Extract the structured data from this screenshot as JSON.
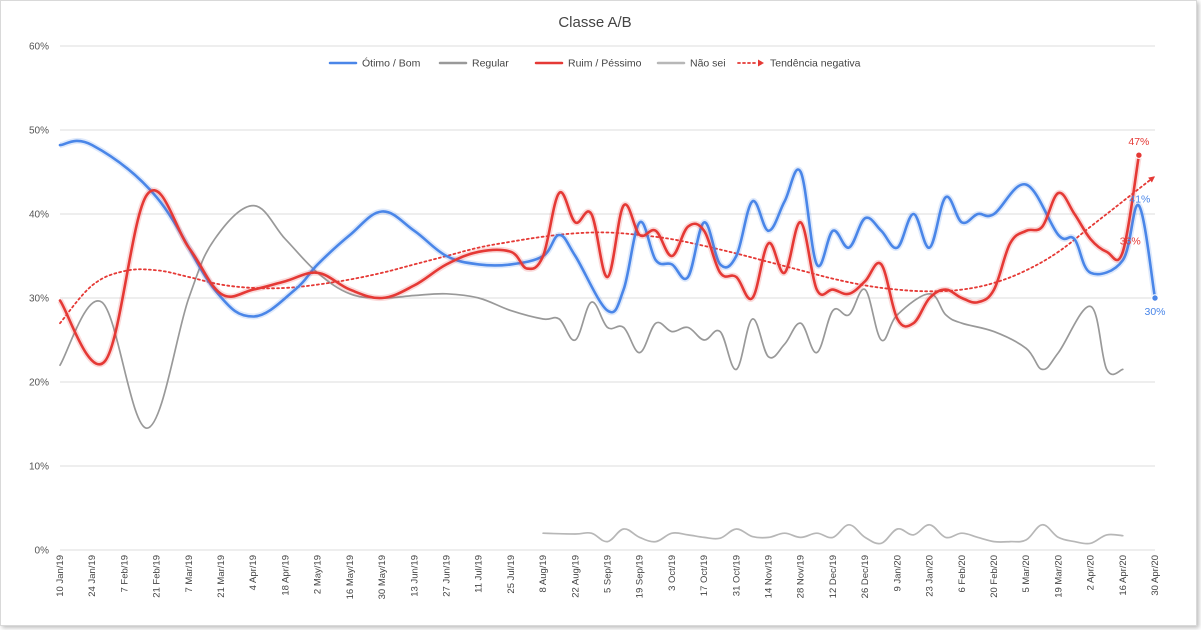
{
  "chart_data": {
    "type": "line",
    "title": "Classe A/B",
    "ylim": [
      0,
      60
    ],
    "y_ticks": [
      0,
      10,
      20,
      30,
      40,
      50,
      60
    ],
    "y_tick_labels": [
      "0%",
      "10%",
      "20%",
      "30%",
      "40%",
      "50%",
      "60%"
    ],
    "grid": true,
    "legend_position": "top",
    "x_tick_labels": [
      "10 Jan/19",
      "24 Jan/19",
      "7 Feb/19",
      "21 Feb/19",
      "7 Mar/19",
      "21 Mar/19",
      "4 Apr/19",
      "18 Apr/19",
      "2 May/19",
      "16 May/19",
      "30 May/19",
      "13 Jun/19",
      "27 Jun/19",
      "11 Jul/19",
      "25 Jul/19",
      "8 Aug/19",
      "22 Aug/19",
      "5 Sep/19",
      "19 Sep/19",
      "3 Oct/19",
      "17 Oct/19",
      "31 Oct/19",
      "14 Nov/19",
      "28 Nov/19",
      "12 Dec/19",
      "26 Dec/19",
      "9 Jan/20",
      "23 Jan/20",
      "6 Feb/20",
      "20 Feb/20",
      "5 Mar/20",
      "19 Mar/20",
      "2 Apr/20",
      "16 Apr/20",
      "30 Apr/20"
    ],
    "series": [
      {
        "name": "Ótimo / Bom",
        "color": "#4a86e8",
        "points": [
          [
            0,
            48.2
          ],
          [
            1,
            48.2
          ],
          [
            3,
            42
          ],
          [
            4.8,
            31
          ],
          [
            6,
            27.8
          ],
          [
            7.3,
            31
          ],
          [
            8,
            34
          ],
          [
            9,
            37.5
          ],
          [
            10,
            40.3
          ],
          [
            11,
            38
          ],
          [
            12,
            35
          ],
          [
            13,
            34
          ],
          [
            14,
            34
          ],
          [
            15,
            35
          ],
          [
            15.5,
            37.5
          ],
          [
            16,
            35
          ],
          [
            17,
            28.5
          ],
          [
            17.5,
            31
          ],
          [
            18,
            39
          ],
          [
            18.5,
            34.5
          ],
          [
            19,
            34
          ],
          [
            19.5,
            32.5
          ],
          [
            20,
            39
          ],
          [
            20.5,
            34
          ],
          [
            21,
            35
          ],
          [
            21.5,
            41.5
          ],
          [
            22,
            38
          ],
          [
            22.5,
            41.5
          ],
          [
            23,
            45
          ],
          [
            23.5,
            34
          ],
          [
            24,
            38
          ],
          [
            24.5,
            36
          ],
          [
            25,
            39.5
          ],
          [
            25.5,
            38
          ],
          [
            26,
            36
          ],
          [
            26.5,
            40
          ],
          [
            27,
            36
          ],
          [
            27.5,
            42
          ],
          [
            28,
            39
          ],
          [
            28.5,
            40
          ],
          [
            29,
            40
          ],
          [
            30,
            43.5
          ],
          [
            31,
            37.5
          ],
          [
            31.5,
            37
          ],
          [
            32,
            33
          ],
          [
            33,
            34.5
          ],
          [
            33.5,
            41
          ],
          [
            34,
            30
          ]
        ],
        "end_label": "30%",
        "annotations": [
          {
            "x": 33.5,
            "y": 41,
            "text": "41%"
          }
        ]
      },
      {
        "name": "Regular",
        "color": "#999999",
        "points": [
          [
            0,
            22
          ],
          [
            1.3,
            29.5
          ],
          [
            2.7,
            14.5
          ],
          [
            4,
            30
          ],
          [
            4.8,
            37
          ],
          [
            6,
            41
          ],
          [
            7,
            37
          ],
          [
            8,
            33
          ],
          [
            9,
            30.5
          ],
          [
            10,
            30
          ],
          [
            11,
            30.3
          ],
          [
            12,
            30.5
          ],
          [
            13,
            30
          ],
          [
            14,
            28.5
          ],
          [
            15,
            27.5
          ],
          [
            15.5,
            27.5
          ],
          [
            16,
            25
          ],
          [
            16.5,
            29.5
          ],
          [
            17,
            26.5
          ],
          [
            17.5,
            26.5
          ],
          [
            18,
            23.5
          ],
          [
            18.5,
            27
          ],
          [
            19,
            26
          ],
          [
            19.5,
            26.5
          ],
          [
            20,
            25
          ],
          [
            20.5,
            26
          ],
          [
            21,
            21.5
          ],
          [
            21.5,
            27.5
          ],
          [
            22,
            23
          ],
          [
            22.5,
            24.5
          ],
          [
            23,
            27
          ],
          [
            23.5,
            23.5
          ],
          [
            24,
            28.5
          ],
          [
            24.5,
            28
          ],
          [
            25,
            31
          ],
          [
            25.5,
            25
          ],
          [
            26,
            28
          ],
          [
            27,
            30.5
          ],
          [
            27.5,
            28
          ],
          [
            28,
            27
          ],
          [
            29,
            26
          ],
          [
            30,
            24
          ],
          [
            30.5,
            21.5
          ],
          [
            31,
            23.5
          ],
          [
            32,
            29
          ],
          [
            32.5,
            21.5
          ],
          [
            33,
            21.5
          ]
        ]
      },
      {
        "name": "Ruim / Péssimo",
        "color": "#e53935",
        "points": [
          [
            0,
            29.7
          ],
          [
            1.4,
            22.5
          ],
          [
            2.7,
            42.3
          ],
          [
            4,
            36
          ],
          [
            5,
            30.5
          ],
          [
            6,
            31
          ],
          [
            7,
            32
          ],
          [
            8,
            33
          ],
          [
            9,
            31
          ],
          [
            10,
            30
          ],
          [
            11,
            31.5
          ],
          [
            12,
            34
          ],
          [
            13,
            35.5
          ],
          [
            14,
            35.5
          ],
          [
            14.5,
            33.5
          ],
          [
            15,
            35
          ],
          [
            15.5,
            42.5
          ],
          [
            16,
            39
          ],
          [
            16.5,
            40
          ],
          [
            17,
            32.5
          ],
          [
            17.5,
            41
          ],
          [
            18,
            37.5
          ],
          [
            18.5,
            38
          ],
          [
            19,
            35
          ],
          [
            19.5,
            38.5
          ],
          [
            20,
            38
          ],
          [
            20.5,
            33
          ],
          [
            21,
            32.5
          ],
          [
            21.5,
            30
          ],
          [
            22,
            36.5
          ],
          [
            22.5,
            33
          ],
          [
            23,
            39
          ],
          [
            23.5,
            31
          ],
          [
            24,
            31
          ],
          [
            24.5,
            30.5
          ],
          [
            25,
            32
          ],
          [
            25.5,
            34
          ],
          [
            26,
            27.5
          ],
          [
            26.5,
            27
          ],
          [
            27,
            30
          ],
          [
            27.5,
            31
          ],
          [
            28,
            30
          ],
          [
            28.5,
            29.5
          ],
          [
            29,
            31
          ],
          [
            29.5,
            36.5
          ],
          [
            30,
            38
          ],
          [
            30.5,
            38.5
          ],
          [
            31,
            42.5
          ],
          [
            31.5,
            40
          ],
          [
            32,
            37
          ],
          [
            32.5,
            35.5
          ],
          [
            33,
            35.5
          ],
          [
            33.5,
            47
          ]
        ],
        "end_label": "47%",
        "annotations": [
          {
            "x": 33.2,
            "y": 36,
            "text": "36%"
          }
        ]
      },
      {
        "name": "Não sei",
        "color": "#b7b7b7",
        "points": [
          [
            15,
            2
          ],
          [
            16,
            1.9
          ],
          [
            16.5,
            2.0
          ],
          [
            17,
            1.0
          ],
          [
            17.5,
            2.5
          ],
          [
            18,
            1.5
          ],
          [
            18.5,
            1.0
          ],
          [
            19,
            2.0
          ],
          [
            19.5,
            1.8
          ],
          [
            20,
            1.5
          ],
          [
            20.5,
            1.4
          ],
          [
            21,
            2.5
          ],
          [
            21.5,
            1.6
          ],
          [
            22,
            1.5
          ],
          [
            22.5,
            2.0
          ],
          [
            23,
            1.5
          ],
          [
            23.5,
            2.0
          ],
          [
            24,
            1.5
          ],
          [
            24.5,
            3.0
          ],
          [
            25,
            1.5
          ],
          [
            25.5,
            0.8
          ],
          [
            26,
            2.5
          ],
          [
            26.5,
            1.8
          ],
          [
            27,
            3.0
          ],
          [
            27.5,
            1.5
          ],
          [
            28,
            2.0
          ],
          [
            28.5,
            1.5
          ],
          [
            29,
            1.0
          ],
          [
            29.5,
            1.0
          ],
          [
            30,
            1.2
          ],
          [
            30.5,
            3.0
          ],
          [
            31,
            1.5
          ],
          [
            31.5,
            1.0
          ],
          [
            32,
            0.8
          ],
          [
            32.5,
            1.8
          ],
          [
            33,
            1.7
          ]
        ]
      },
      {
        "name": "Tendência negativa",
        "color": "#e53935",
        "style": "dotted",
        "points": [
          [
            0,
            27
          ],
          [
            1,
            31.5
          ],
          [
            2,
            33.2
          ],
          [
            3,
            33.3
          ],
          [
            4,
            32.5
          ],
          [
            5,
            31.6
          ],
          [
            6,
            31.2
          ],
          [
            7,
            31.2
          ],
          [
            8,
            31.6
          ],
          [
            9,
            32.2
          ],
          [
            10,
            33
          ],
          [
            11,
            34
          ],
          [
            12,
            35
          ],
          [
            13,
            36
          ],
          [
            14,
            36.7
          ],
          [
            15,
            37.3
          ],
          [
            16,
            37.7
          ],
          [
            17,
            37.8
          ],
          [
            18,
            37.5
          ],
          [
            19,
            37
          ],
          [
            20,
            36.2
          ],
          [
            21,
            35.3
          ],
          [
            22,
            34.3
          ],
          [
            23,
            33.3
          ],
          [
            24,
            32.3
          ],
          [
            25,
            31.5
          ],
          [
            26,
            31
          ],
          [
            27,
            30.8
          ],
          [
            28,
            31
          ],
          [
            29,
            31.8
          ],
          [
            30,
            33.3
          ],
          [
            31,
            35.5
          ],
          [
            32,
            38.5
          ],
          [
            33,
            41.5
          ],
          [
            34,
            44.5
          ]
        ]
      }
    ]
  }
}
